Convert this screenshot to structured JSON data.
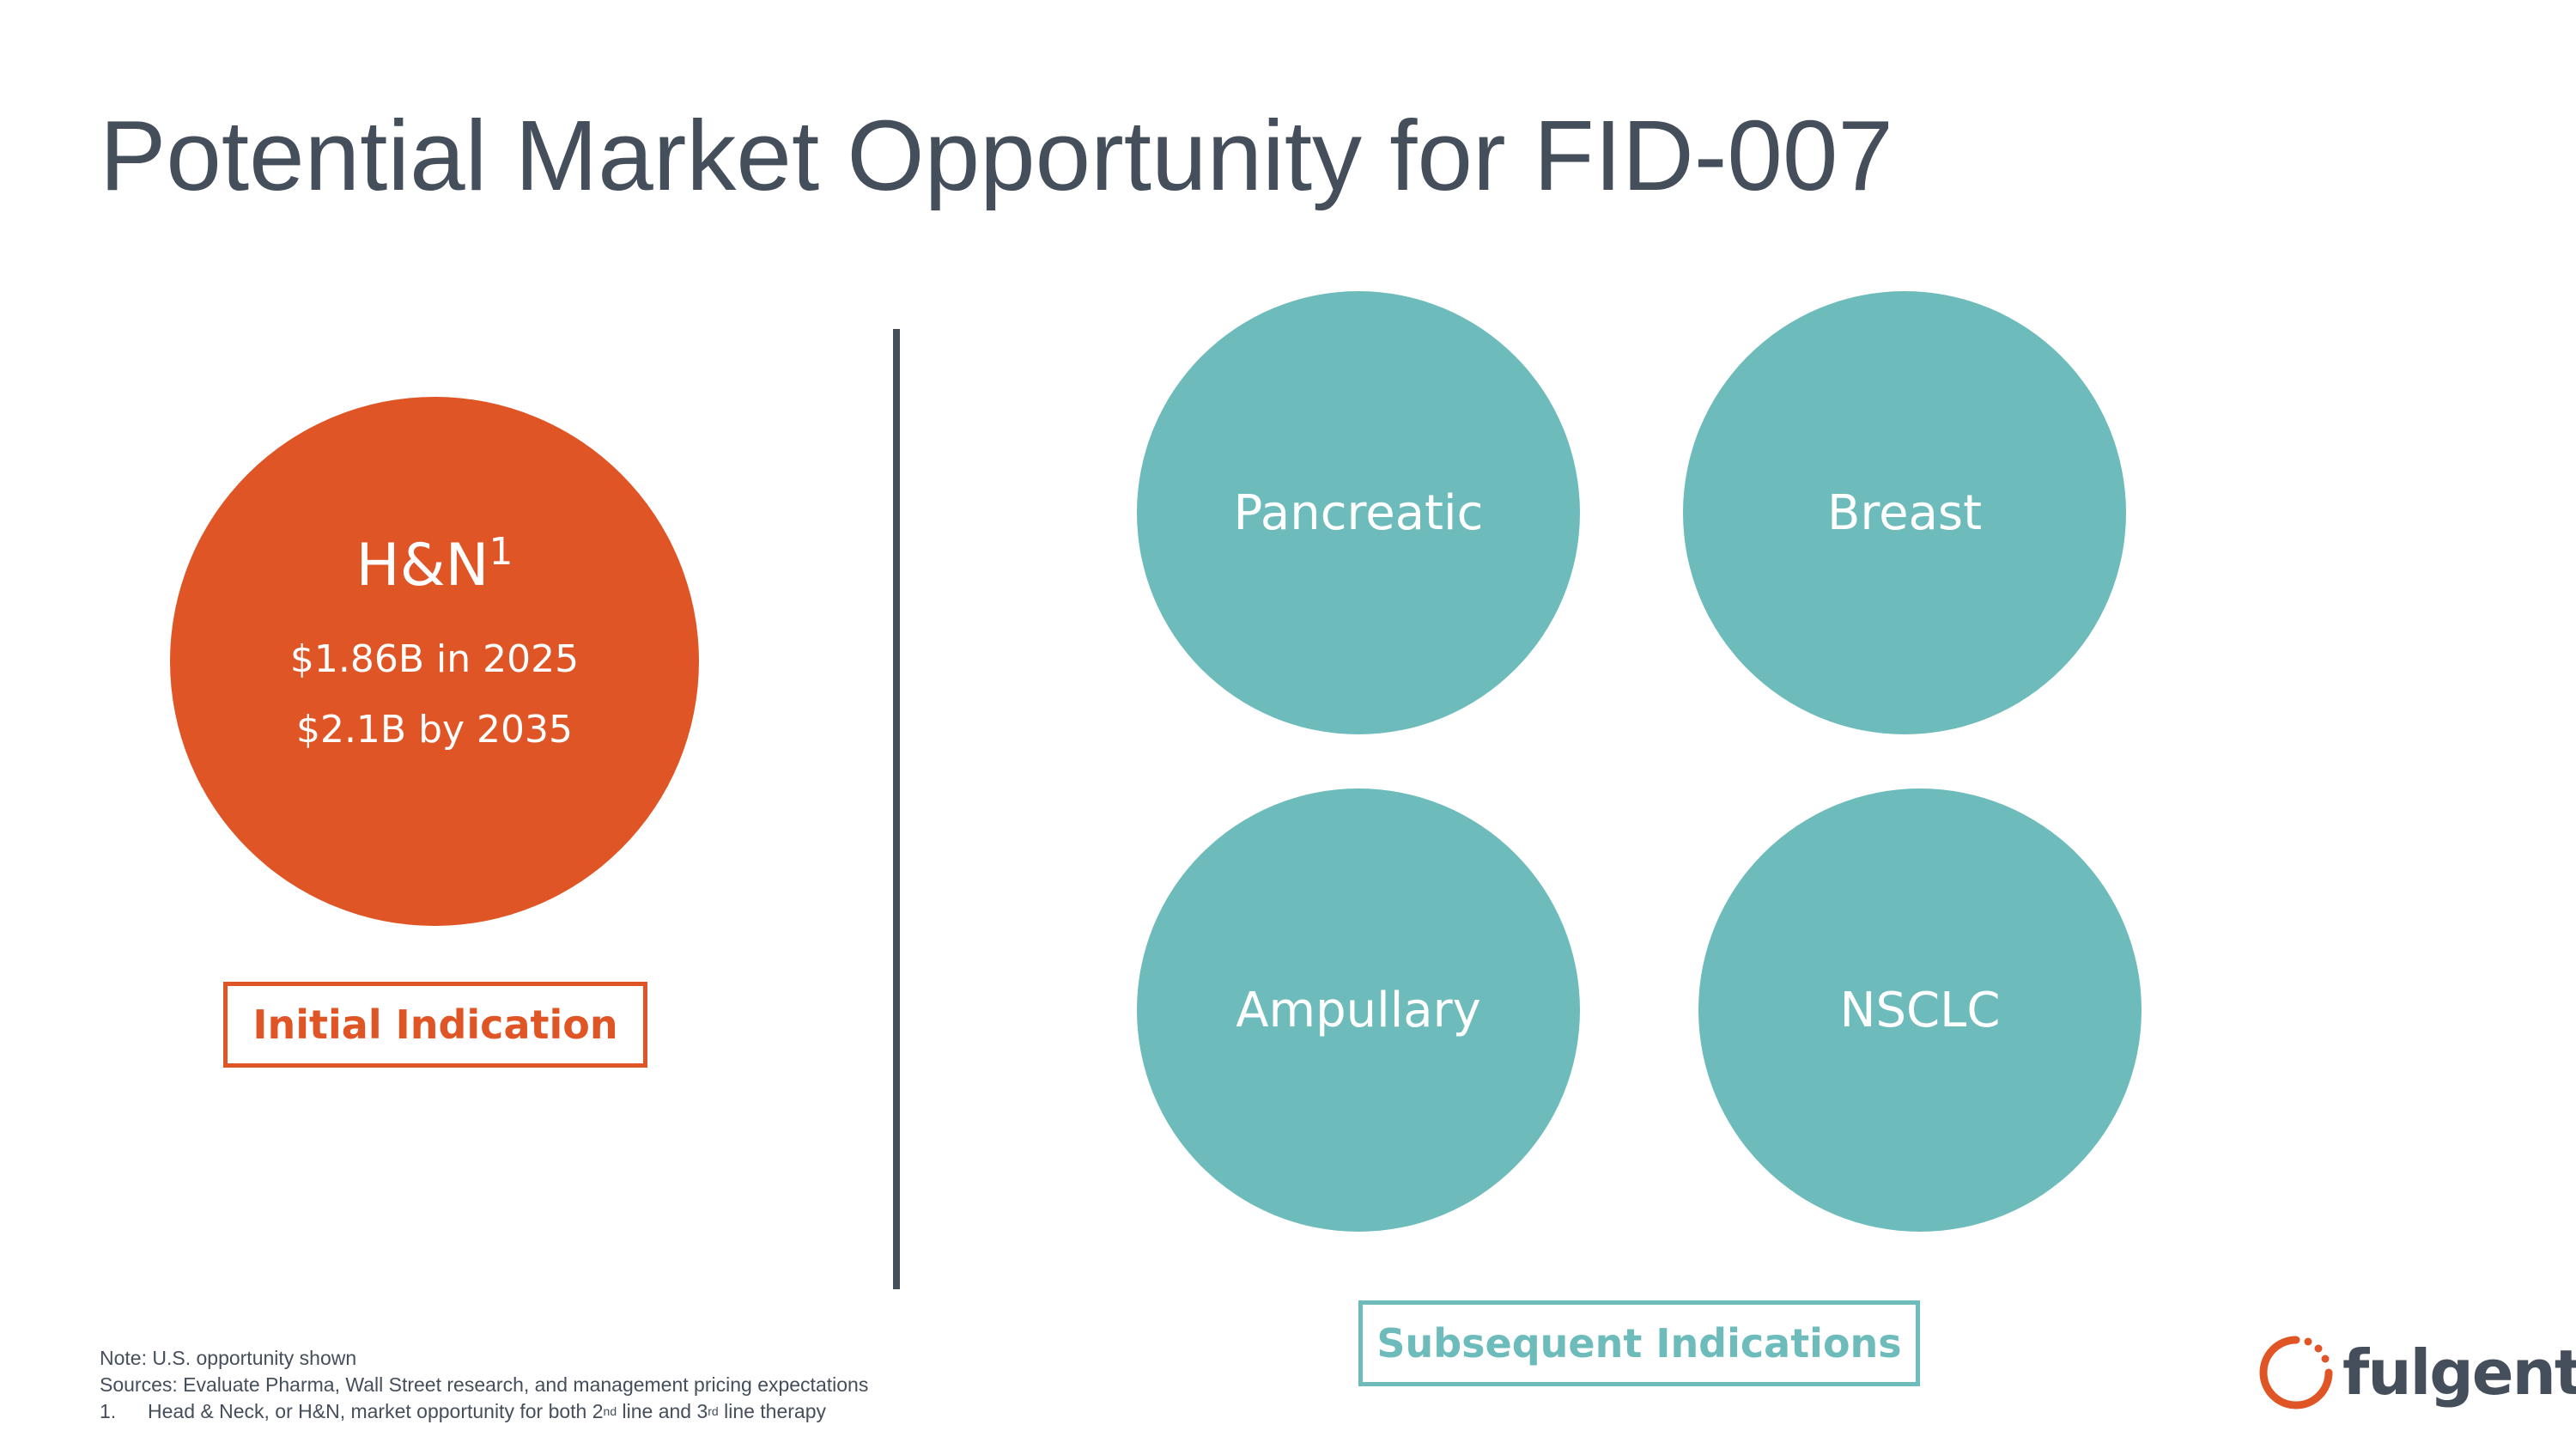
{
  "title": "Potential Market Opportunity for FID-007",
  "initial": {
    "circle_label": "H&N",
    "circle_label_sup": "1",
    "value_2025": "$1.86B in 2025",
    "value_2035": "$2.1B by 2035",
    "box_label": "Initial Indication"
  },
  "subsequent": {
    "items": [
      "Pancreatic",
      "Breast",
      "Ampullary",
      "NSCLC"
    ],
    "box_label": "Subsequent Indications"
  },
  "notes": {
    "note": "Note: U.S. opportunity shown",
    "sources": "Sources: Evaluate Pharma, Wall Street research, and management pricing expectations",
    "footnote_number": "1.",
    "footnote_part1": "Head & Neck, or H&N, market opportunity for both 2",
    "footnote_sup1": "nd",
    "footnote_part2": " line and 3",
    "footnote_sup2": "rd",
    "footnote_part3": " line therapy"
  },
  "logo": {
    "text": "fulgent",
    "reg": "®"
  },
  "colors": {
    "orange": "#df5526",
    "teal": "#6dbcbb",
    "slate": "#454e5b"
  }
}
